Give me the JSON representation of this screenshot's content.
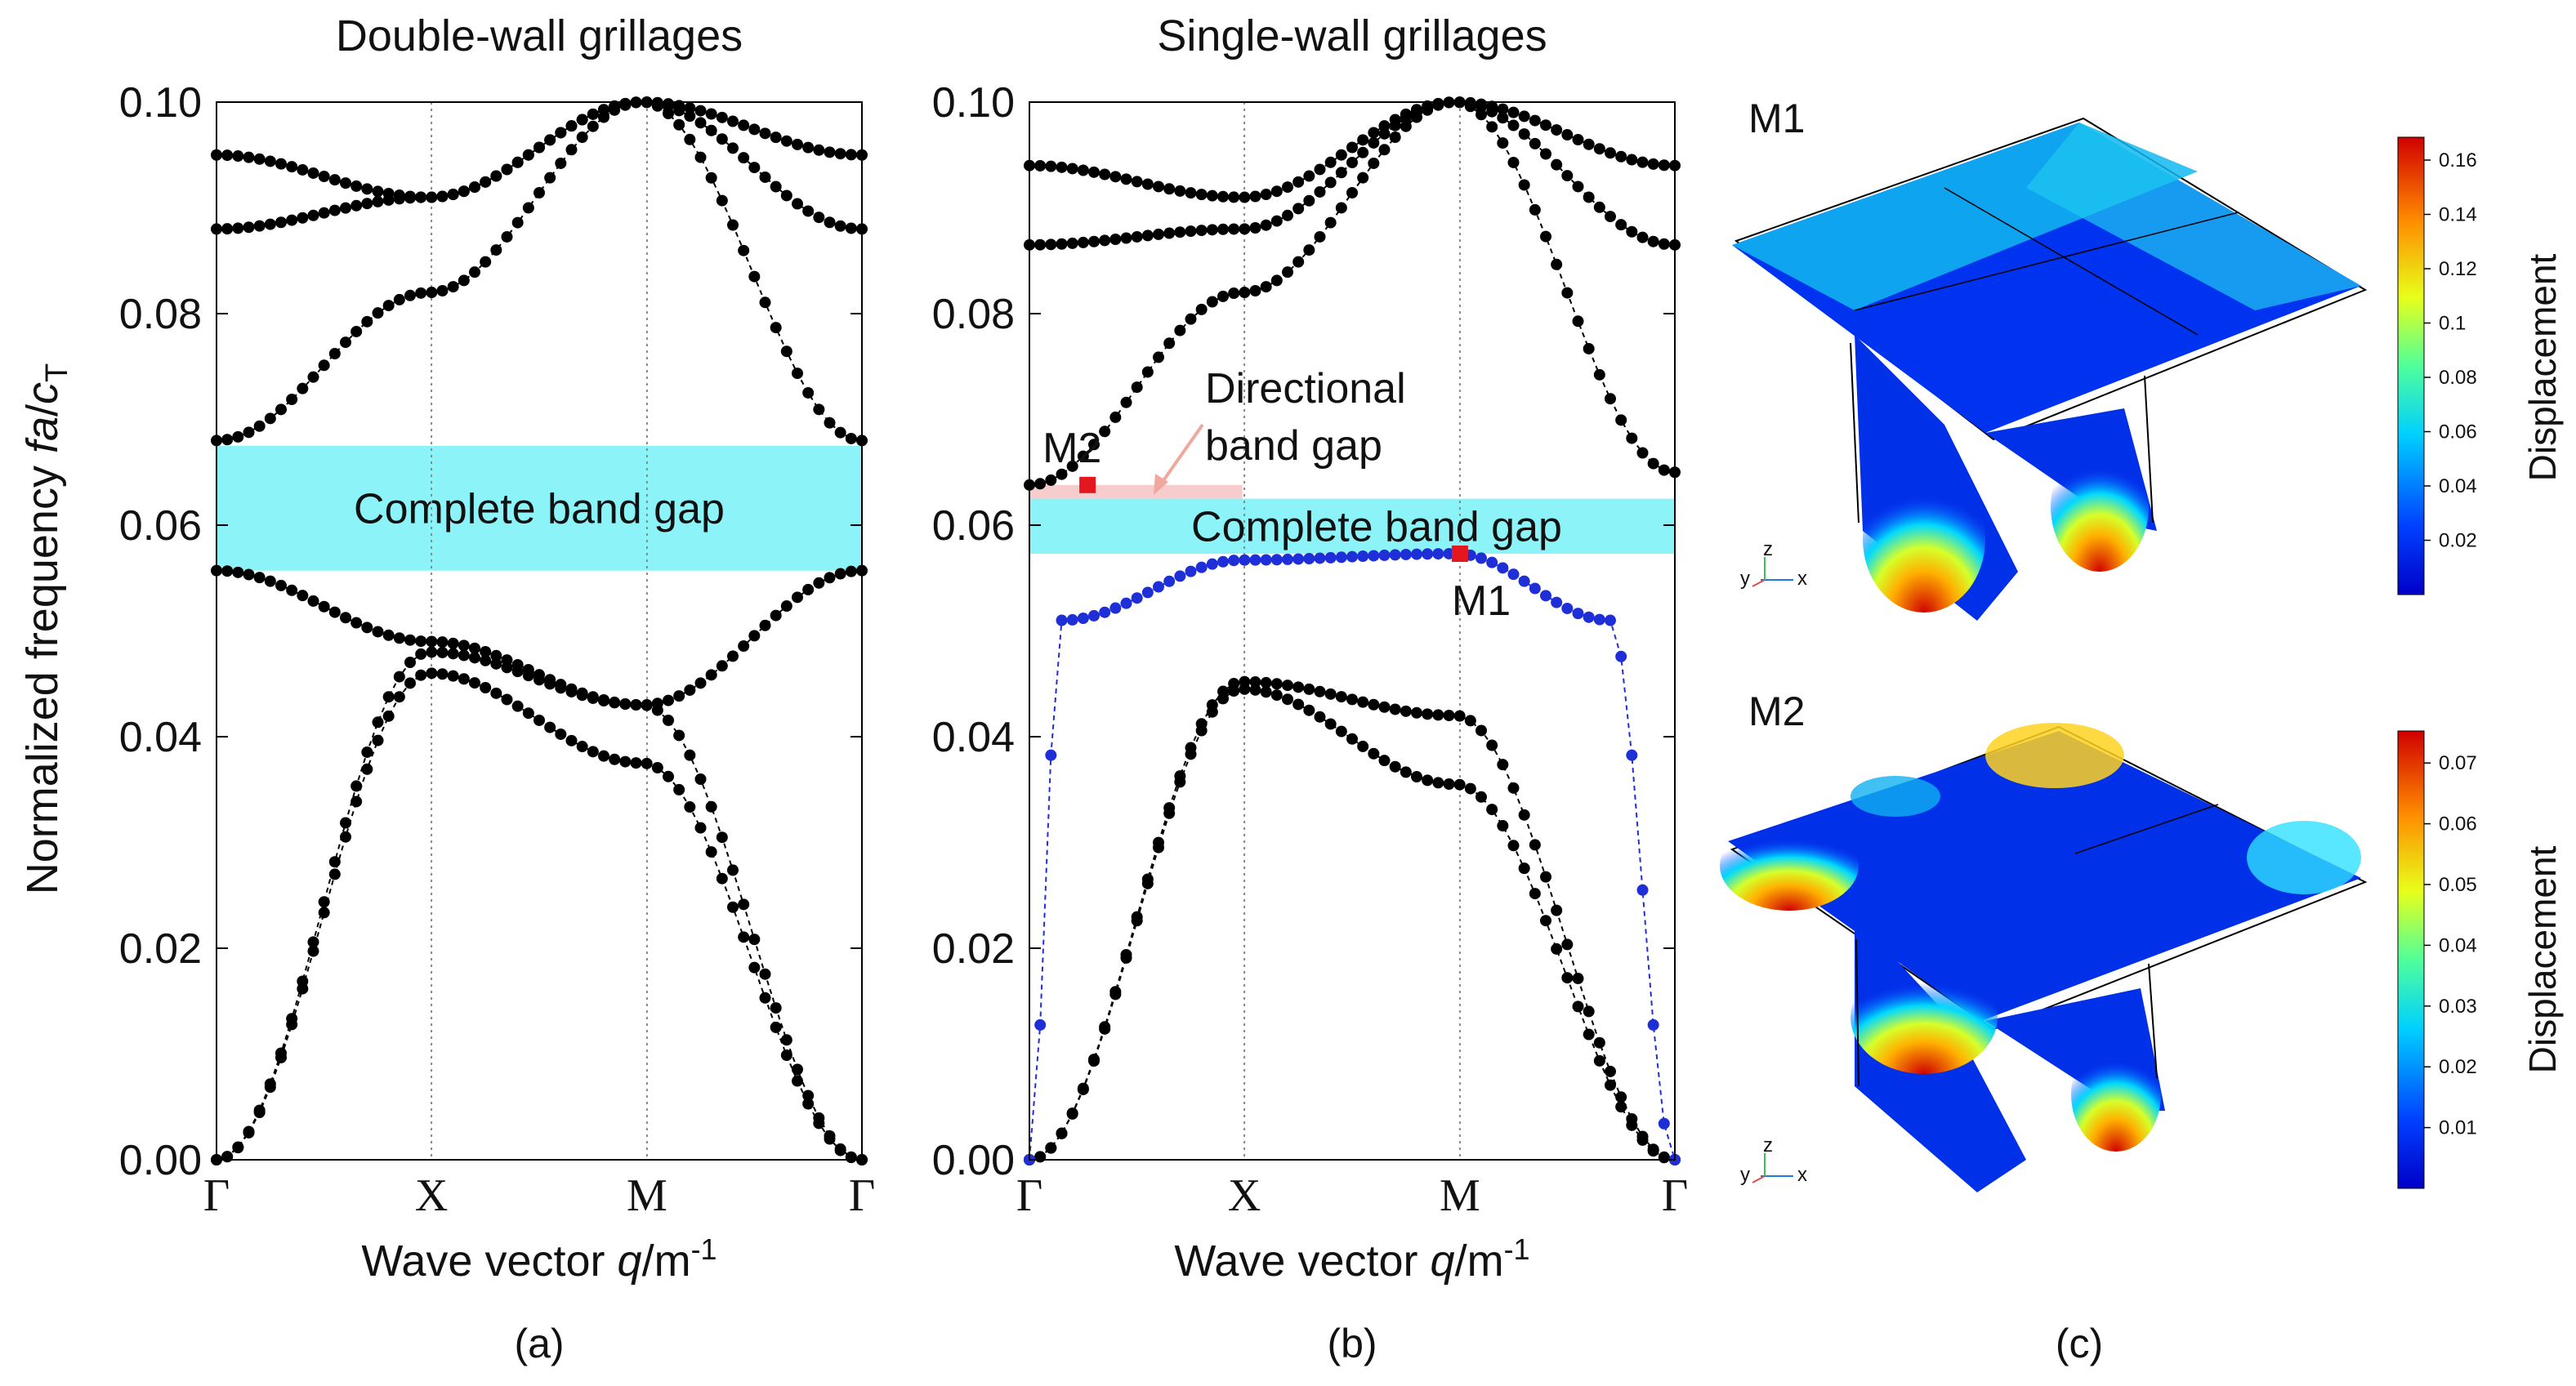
{
  "chart_data": [
    {
      "type": "scatter",
      "id": "a",
      "title": "Double-wall grillages",
      "panel_label": "(a)",
      "ylabel": "Normalized frequency fa/c",
      "ylabel_parts": {
        "main": "Normalized frequency ",
        "italic": "fa",
        "slash": "/",
        "c": "c",
        "sub": "T"
      },
      "xlabel_parts": {
        "main": "Wave vector ",
        "italic": "q",
        "rest": "/m",
        "sup": "-1"
      },
      "x_ticks": [
        "Γ",
        "X",
        "M",
        "Γ"
      ],
      "y_ticks": [
        "0.00",
        "0.02",
        "0.04",
        "0.06",
        "0.08",
        "0.10"
      ],
      "ylim": [
        0,
        0.1
      ],
      "complete_gap": {
        "label": "Complete band gap",
        "range": [
          0.0557,
          0.0675
        ]
      },
      "series": [
        {
          "name": "band-1",
          "values": [
            [
              0,
              0
            ],
            [
              0.33,
              0.046
            ],
            [
              0.66,
              0.0375
            ],
            [
              1,
              0
            ]
          ]
        },
        {
          "name": "band-2",
          "values": [
            [
              0,
              0
            ],
            [
              0.33,
              0.048
            ],
            [
              0.66,
              0.043
            ],
            [
              1,
              0
            ]
          ]
        },
        {
          "name": "band-3",
          "values": [
            [
              0,
              0.0557
            ],
            [
              0.33,
              0.049
            ],
            [
              0.66,
              0.043
            ],
            [
              1,
              0.0557
            ]
          ]
        },
        {
          "name": "band-4",
          "values": [
            [
              0,
              0.068
            ],
            [
              0.33,
              0.082
            ],
            [
              0.66,
              0.1
            ],
            [
              1,
              0.068
            ]
          ]
        },
        {
          "name": "band-5",
          "values": [
            [
              0,
              0.088
            ],
            [
              0.33,
              0.091
            ],
            [
              0.66,
              0.1
            ],
            [
              1,
              0.088
            ]
          ]
        },
        {
          "name": "band-6",
          "values": [
            [
              0,
              0.095
            ],
            [
              0.33,
              0.091
            ],
            [
              0.66,
              0.1
            ],
            [
              1,
              0.095
            ]
          ]
        }
      ]
    },
    {
      "type": "scatter",
      "id": "b",
      "title": "Single-wall grillages",
      "panel_label": "(b)",
      "xlabel_parts": {
        "main": "Wave vector ",
        "italic": "q",
        "rest": "/m",
        "sup": "-1"
      },
      "x_ticks": [
        "Γ",
        "X",
        "M",
        "Γ"
      ],
      "y_ticks": [
        "0.00",
        "0.02",
        "0.04",
        "0.06",
        "0.08",
        "0.10"
      ],
      "ylim": [
        0,
        0.1
      ],
      "complete_gap": {
        "label": "Complete band gap",
        "range": [
          0.0573,
          0.0625
        ]
      },
      "directional_gap": {
        "label_line1": "Directional",
        "label_line2": "band gap",
        "range": [
          0.0625,
          0.0638
        ]
      },
      "markers": [
        {
          "label": "M1",
          "x": 0.667,
          "y": 0.0573
        },
        {
          "label": "M2",
          "x": 0.09,
          "y": 0.0638
        }
      ],
      "series": [
        {
          "name": "band-1",
          "values": [
            [
              0,
              0
            ],
            [
              0.33,
              0.0445
            ],
            [
              0.66,
              0.0355
            ],
            [
              1,
              0
            ]
          ]
        },
        {
          "name": "band-2",
          "values": [
            [
              0,
              0
            ],
            [
              0.33,
              0.0452
            ],
            [
              0.66,
              0.042
            ],
            [
              1,
              0
            ]
          ]
        },
        {
          "name": "band-3-blue",
          "values": [
            [
              0,
              0
            ],
            [
              0.05,
              0.051
            ],
            [
              0.33,
              0.0567
            ],
            [
              0.66,
              0.0573
            ],
            [
              0.9,
              0.051
            ],
            [
              1,
              0
            ]
          ]
        },
        {
          "name": "band-4",
          "values": [
            [
              0,
              0.0638
            ],
            [
              0.33,
              0.082
            ],
            [
              0.66,
              0.1
            ],
            [
              1,
              0.065
            ]
          ]
        },
        {
          "name": "band-5",
          "values": [
            [
              0,
              0.0865
            ],
            [
              0.33,
              0.088
            ],
            [
              0.66,
              0.1
            ],
            [
              1,
              0.0865
            ]
          ]
        },
        {
          "name": "band-6",
          "values": [
            [
              0,
              0.094
            ],
            [
              0.33,
              0.091
            ],
            [
              0.66,
              0.1
            ],
            [
              1,
              0.094
            ]
          ]
        }
      ]
    }
  ],
  "panel_c": {
    "panel_label": "(c)",
    "modes": [
      {
        "label": "M1",
        "colorbar_title": "Displacement",
        "ticks": [
          "0.16",
          "0.14",
          "0.12",
          "0.1",
          "0.08",
          "0.06",
          "0.04",
          "0.02"
        ]
      },
      {
        "label": "M2",
        "colorbar_title": "Displacement",
        "ticks": [
          "0.07",
          "0.06",
          "0.05",
          "0.04",
          "0.03",
          "0.02",
          "0.01"
        ]
      }
    ],
    "axis_triad": {
      "x": "x",
      "y": "y",
      "z": "z"
    }
  },
  "colors": {
    "points": "#000000",
    "blue_band": "#1f2fd8",
    "gap": "#8cf3f8",
    "dir_gap": "#f7cccc",
    "marker": "#e3171d"
  }
}
